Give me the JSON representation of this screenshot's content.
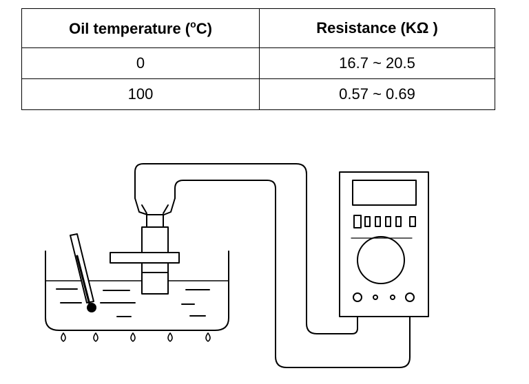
{
  "table": {
    "header": {
      "col1_pre": "Oil temperature (",
      "col1_sup": "o",
      "col1_post": "C)",
      "col2": "Resistance (KΩ )"
    },
    "rows": [
      {
        "temperature": "0",
        "resistance": "16.7 ~ 20.5"
      },
      {
        "temperature": "100",
        "resistance": "0.57 ~ 0.69"
      }
    ]
  }
}
